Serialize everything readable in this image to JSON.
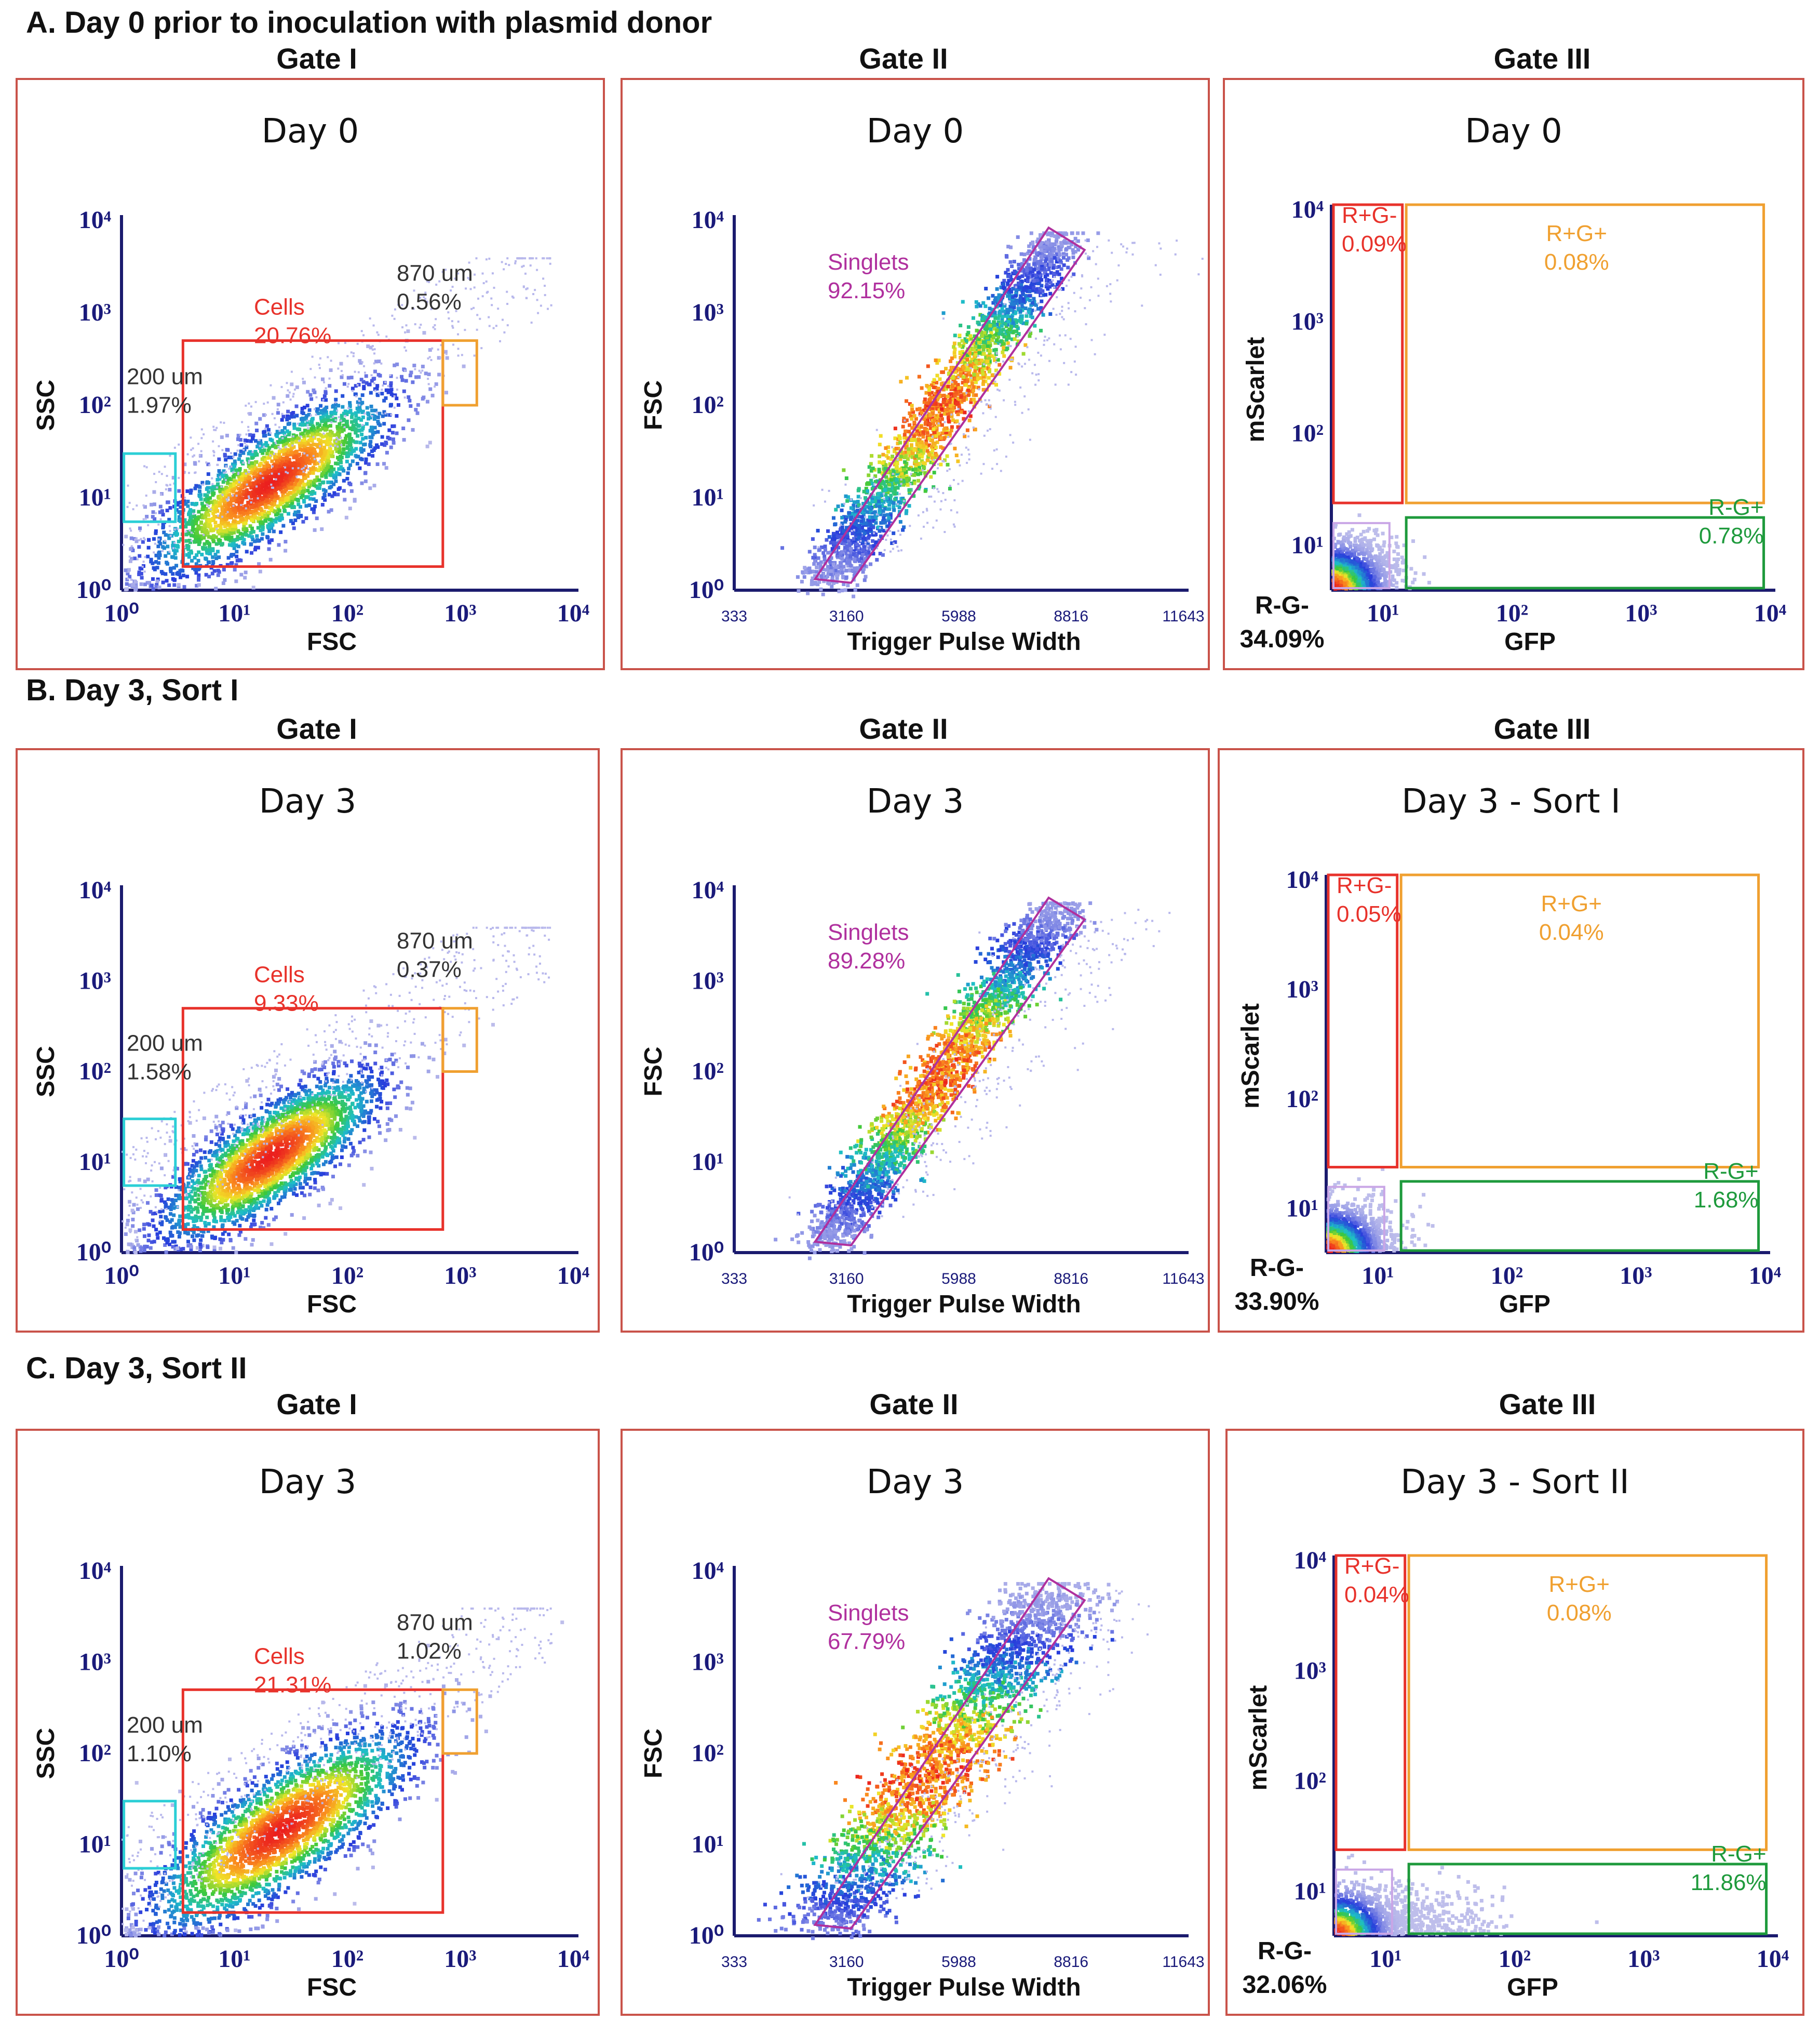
{
  "sections": [
    {
      "label": "A. Day 0 prior to inoculation with plasmid donor"
    },
    {
      "label": "B. Day 3, Sort I"
    },
    {
      "label": "C. Day 3, Sort II"
    }
  ],
  "gate_titles": [
    "Gate I",
    "Gate II",
    "Gate III"
  ],
  "colors": {
    "cells": "#e8322b",
    "orange": "#f0a030",
    "cyan": "#2ccfd6",
    "singlets": "#b0309e",
    "green": "#1e9a3c",
    "axis": "#1a1a7a"
  },
  "chart_data": [
    {
      "type": "scatter",
      "panel": "A-I",
      "title": "Day 0",
      "xlabel": "FSC",
      "ylabel": "SSC",
      "xscale": "log",
      "yscale": "log",
      "xlim": [
        1,
        10000
      ],
      "ylim": [
        1,
        10000
      ],
      "xticks": [
        "10⁰",
        "10¹",
        "10²",
        "10³",
        "10⁴"
      ],
      "yticks": [
        "10⁰",
        "10¹",
        "10²",
        "10³",
        "10⁴"
      ],
      "gates": [
        {
          "name": "Cells",
          "value": "20.76%",
          "color": "#e8322b",
          "x": [
            3.5,
            700
          ],
          "y": [
            1.8,
            500
          ]
        },
        {
          "name": "870 um",
          "value": "0.56%",
          "color": "#f0a030",
          "x": [
            700,
            1400
          ],
          "y": [
            100,
            500
          ]
        },
        {
          "name": "200 um",
          "value": "1.97%",
          "color": "#2ccfd6",
          "x": [
            1.05,
            3.0
          ],
          "y": [
            5.5,
            30
          ]
        }
      ],
      "cloud": {
        "cx": [
          20,
          15
        ],
        "spread": [
          0.55,
          0.3
        ]
      }
    },
    {
      "type": "scatter",
      "panel": "A-II",
      "title": "Day 0",
      "xlabel": "Trigger Pulse Width",
      "ylabel": "FSC",
      "yscale": "log",
      "xlim": [
        333,
        11643
      ],
      "ylim": [
        1,
        10000
      ],
      "xticks": [
        "333",
        "3160",
        "5988",
        "8816",
        "11643"
      ],
      "yticks": [
        "10⁰",
        "10¹",
        "10²",
        "10³",
        "10⁴"
      ],
      "gates": [
        {
          "name": "Singlets",
          "value": "92.15%",
          "color": "#b0309e"
        }
      ]
    },
    {
      "type": "scatter",
      "panel": "A-III",
      "title": "Day 0",
      "xlabel": "GFP",
      "ylabel": "mScarlet",
      "xscale": "log",
      "yscale": "log",
      "xticks": [
        "10¹",
        "10²",
        "10³",
        "10⁴"
      ],
      "yticks": [
        "10¹",
        "10²",
        "10³",
        "10⁴"
      ],
      "gates": [
        {
          "name": "R+G-",
          "value": "0.09%",
          "color": "#e8322b"
        },
        {
          "name": "R+G+",
          "value": "0.08%",
          "color": "#f0a030"
        },
        {
          "name": "R-G+",
          "value": "0.78%",
          "color": "#1e9a3c"
        },
        {
          "name": "R-G-",
          "value": "34.09%",
          "color": "#1e9a3c"
        }
      ]
    },
    {
      "type": "scatter",
      "panel": "B-I",
      "title": "Day 3",
      "xlabel": "FSC",
      "ylabel": "SSC",
      "xscale": "log",
      "yscale": "log",
      "xlim": [
        1,
        10000
      ],
      "ylim": [
        1,
        10000
      ],
      "xticks": [
        "10⁰",
        "10¹",
        "10²",
        "10³",
        "10⁴"
      ],
      "yticks": [
        "10⁰",
        "10¹",
        "10²",
        "10³",
        "10⁴"
      ],
      "gates": [
        {
          "name": "Cells",
          "value": "9.33%",
          "color": "#e8322b",
          "x": [
            3.5,
            700
          ],
          "y": [
            1.8,
            500
          ]
        },
        {
          "name": "870 um",
          "value": "0.37%",
          "color": "#f0a030",
          "x": [
            700,
            1400
          ],
          "y": [
            100,
            500
          ]
        },
        {
          "name": "200 um",
          "value": "1.58%",
          "color": "#2ccfd6",
          "x": [
            1.05,
            3.0
          ],
          "y": [
            5.5,
            30
          ]
        }
      ],
      "cloud": {
        "cx": [
          20,
          12
        ],
        "spread": [
          0.5,
          0.3
        ]
      }
    },
    {
      "type": "scatter",
      "panel": "B-II",
      "title": "Day 3",
      "xlabel": "Trigger Pulse Width",
      "ylabel": "FSC",
      "yscale": "log",
      "xlim": [
        333,
        11643
      ],
      "ylim": [
        1,
        10000
      ],
      "xticks": [
        "333",
        "3160",
        "5988",
        "8816",
        "11643"
      ],
      "yticks": [
        "10⁰",
        "10¹",
        "10²",
        "10³",
        "10⁴"
      ],
      "gates": [
        {
          "name": "Singlets",
          "value": "89.28%",
          "color": "#b0309e"
        }
      ]
    },
    {
      "type": "scatter",
      "panel": "B-III",
      "title": "Day 3 - Sort I",
      "xlabel": "GFP",
      "ylabel": "mScarlet",
      "xscale": "log",
      "yscale": "log",
      "xticks": [
        "10¹",
        "10²",
        "10³",
        "10⁴"
      ],
      "yticks": [
        "10¹",
        "10²",
        "10³",
        "10⁴"
      ],
      "gates": [
        {
          "name": "R+G-",
          "value": "0.05%",
          "color": "#e8322b"
        },
        {
          "name": "R+G+",
          "value": "0.04%",
          "color": "#f0a030"
        },
        {
          "name": "R-G+",
          "value": "1.68%",
          "color": "#1e9a3c"
        },
        {
          "name": "R-G-",
          "value": "33.90%",
          "color": "#1e9a3c"
        }
      ]
    },
    {
      "type": "scatter",
      "panel": "C-I",
      "title": "Day 3",
      "xlabel": "FSC",
      "ylabel": "SSC",
      "xscale": "log",
      "yscale": "log",
      "xlim": [
        1,
        10000
      ],
      "ylim": [
        1,
        10000
      ],
      "xticks": [
        "10⁰",
        "10¹",
        "10²",
        "10³",
        "10⁴"
      ],
      "yticks": [
        "10⁰",
        "10¹",
        "10²",
        "10³",
        "10⁴"
      ],
      "gates": [
        {
          "name": "Cells",
          "value": "21.31%",
          "color": "#e8322b",
          "x": [
            3.5,
            700
          ],
          "y": [
            1.8,
            500
          ]
        },
        {
          "name": "870 um",
          "value": "1.02%",
          "color": "#f0a030",
          "x": [
            700,
            1400
          ],
          "y": [
            100,
            500
          ]
        },
        {
          "name": "200 um",
          "value": "1.10%",
          "color": "#2ccfd6",
          "x": [
            1.05,
            3.0
          ],
          "y": [
            5.5,
            30
          ]
        }
      ],
      "cloud": {
        "cx": [
          25,
          15
        ],
        "spread": [
          0.6,
          0.35
        ]
      }
    },
    {
      "type": "scatter",
      "panel": "C-II",
      "title": "Day 3",
      "xlabel": "Trigger Pulse Width",
      "ylabel": "FSC",
      "yscale": "log",
      "xlim": [
        333,
        11643
      ],
      "ylim": [
        1,
        10000
      ],
      "xticks": [
        "333",
        "3160",
        "5988",
        "8816",
        "11643"
      ],
      "yticks": [
        "10⁰",
        "10¹",
        "10²",
        "10³",
        "10⁴"
      ],
      "gates": [
        {
          "name": "Singlets",
          "value": "67.79%",
          "color": "#b0309e"
        }
      ]
    },
    {
      "type": "scatter",
      "panel": "C-III",
      "title": "Day 3 - Sort II",
      "xlabel": "GFP",
      "ylabel": "mScarlet",
      "xscale": "log",
      "yscale": "log",
      "xticks": [
        "10¹",
        "10²",
        "10³",
        "10⁴"
      ],
      "yticks": [
        "10¹",
        "10²",
        "10³",
        "10⁴"
      ],
      "gates": [
        {
          "name": "R+G-",
          "value": "0.04%",
          "color": "#e8322b"
        },
        {
          "name": "R+G+",
          "value": "0.08%",
          "color": "#f0a030"
        },
        {
          "name": "R-G+",
          "value": "11.86%",
          "color": "#1e9a3c"
        },
        {
          "name": "R-G-",
          "value": "32.06%",
          "color": "#1e9a3c"
        }
      ]
    }
  ]
}
